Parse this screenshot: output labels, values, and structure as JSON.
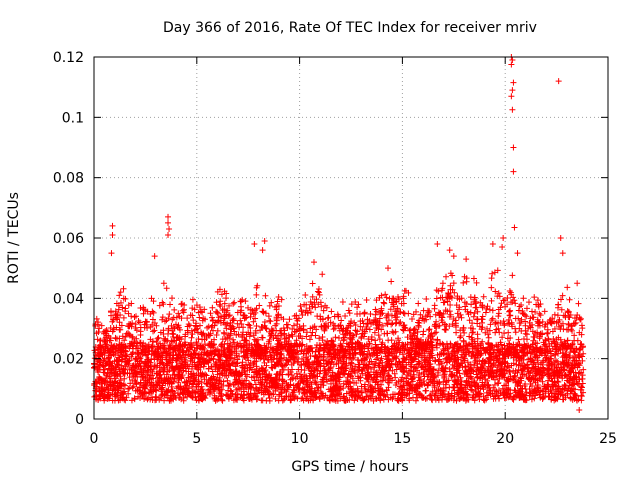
{
  "chart_data": {
    "type": "scatter",
    "title": "Day 366 of 2016, Rate Of TEC Index for receiver mriv",
    "xlabel": "GPS time / hours",
    "ylabel": "ROTI / TECUs",
    "xlim": [
      0,
      25
    ],
    "ylim": [
      0,
      0.12
    ],
    "xticks": [
      0,
      5,
      10,
      15,
      20,
      25
    ],
    "xtick_labels": [
      "0",
      "5",
      "10",
      "15",
      "20",
      "25"
    ],
    "yticks": [
      0,
      0.02,
      0.04,
      0.06,
      0.08,
      0.1,
      0.12
    ],
    "ytick_labels": [
      "0",
      "0.02",
      "0.04",
      "0.06",
      "0.08",
      "0.1",
      "0.12"
    ],
    "grid": true,
    "marker": "+",
    "color": "#ff0000",
    "data_range_x": [
      0,
      23.8
    ],
    "typical_band": [
      0.006,
      0.025
    ],
    "envelope": [
      {
        "x": 0.0,
        "y": 0.034
      },
      {
        "x": 0.5,
        "y": 0.033
      },
      {
        "x": 1.0,
        "y": 0.041
      },
      {
        "x": 1.5,
        "y": 0.048
      },
      {
        "x": 2.0,
        "y": 0.037
      },
      {
        "x": 2.5,
        "y": 0.04
      },
      {
        "x": 3.0,
        "y": 0.043
      },
      {
        "x": 3.5,
        "y": 0.046
      },
      {
        "x": 4.0,
        "y": 0.04
      },
      {
        "x": 4.5,
        "y": 0.038
      },
      {
        "x": 5.0,
        "y": 0.045
      },
      {
        "x": 5.5,
        "y": 0.035
      },
      {
        "x": 6.0,
        "y": 0.043
      },
      {
        "x": 6.5,
        "y": 0.046
      },
      {
        "x": 7.0,
        "y": 0.042
      },
      {
        "x": 7.5,
        "y": 0.038
      },
      {
        "x": 8.0,
        "y": 0.045
      },
      {
        "x": 8.5,
        "y": 0.04
      },
      {
        "x": 9.0,
        "y": 0.041
      },
      {
        "x": 9.5,
        "y": 0.037
      },
      {
        "x": 10.0,
        "y": 0.04
      },
      {
        "x": 10.5,
        "y": 0.048
      },
      {
        "x": 11.0,
        "y": 0.045
      },
      {
        "x": 11.5,
        "y": 0.041
      },
      {
        "x": 12.0,
        "y": 0.038
      },
      {
        "x": 12.5,
        "y": 0.042
      },
      {
        "x": 13.0,
        "y": 0.039
      },
      {
        "x": 13.5,
        "y": 0.04
      },
      {
        "x": 14.0,
        "y": 0.043
      },
      {
        "x": 14.5,
        "y": 0.047
      },
      {
        "x": 15.0,
        "y": 0.046
      },
      {
        "x": 15.5,
        "y": 0.04
      },
      {
        "x": 16.0,
        "y": 0.04
      },
      {
        "x": 16.5,
        "y": 0.042
      },
      {
        "x": 17.0,
        "y": 0.055
      },
      {
        "x": 17.5,
        "y": 0.05
      },
      {
        "x": 18.0,
        "y": 0.048
      },
      {
        "x": 18.5,
        "y": 0.047
      },
      {
        "x": 19.0,
        "y": 0.044
      },
      {
        "x": 19.5,
        "y": 0.051
      },
      {
        "x": 20.0,
        "y": 0.047
      },
      {
        "x": 20.5,
        "y": 0.048
      },
      {
        "x": 21.0,
        "y": 0.04
      },
      {
        "x": 21.5,
        "y": 0.041
      },
      {
        "x": 22.0,
        "y": 0.036
      },
      {
        "x": 22.5,
        "y": 0.04
      },
      {
        "x": 23.0,
        "y": 0.044
      },
      {
        "x": 23.5,
        "y": 0.043
      },
      {
        "x": 23.8,
        "y": 0.036
      }
    ],
    "outliers": [
      {
        "x": 0.9,
        "y": 0.064
      },
      {
        "x": 0.9,
        "y": 0.061
      },
      {
        "x": 0.85,
        "y": 0.055
      },
      {
        "x": 2.95,
        "y": 0.054
      },
      {
        "x": 3.6,
        "y": 0.067
      },
      {
        "x": 3.6,
        "y": 0.065
      },
      {
        "x": 3.65,
        "y": 0.063
      },
      {
        "x": 3.6,
        "y": 0.061
      },
      {
        "x": 7.8,
        "y": 0.058
      },
      {
        "x": 8.3,
        "y": 0.059
      },
      {
        "x": 8.2,
        "y": 0.056
      },
      {
        "x": 10.7,
        "y": 0.052
      },
      {
        "x": 11.1,
        "y": 0.048
      },
      {
        "x": 14.3,
        "y": 0.05
      },
      {
        "x": 16.7,
        "y": 0.058
      },
      {
        "x": 17.3,
        "y": 0.056
      },
      {
        "x": 17.5,
        "y": 0.054
      },
      {
        "x": 18.1,
        "y": 0.053
      },
      {
        "x": 19.4,
        "y": 0.058
      },
      {
        "x": 19.9,
        "y": 0.06
      },
      {
        "x": 19.85,
        "y": 0.057
      },
      {
        "x": 20.6,
        "y": 0.055
      },
      {
        "x": 20.3,
        "y": 0.12
      },
      {
        "x": 20.35,
        "y": 0.119
      },
      {
        "x": 20.3,
        "y": 0.1175
      },
      {
        "x": 20.4,
        "y": 0.1115
      },
      {
        "x": 20.35,
        "y": 0.109
      },
      {
        "x": 20.3,
        "y": 0.107
      },
      {
        "x": 20.35,
        "y": 0.1025
      },
      {
        "x": 20.4,
        "y": 0.09
      },
      {
        "x": 20.4,
        "y": 0.082
      },
      {
        "x": 20.45,
        "y": 0.0635
      },
      {
        "x": 22.6,
        "y": 0.112
      },
      {
        "x": 22.7,
        "y": 0.06
      },
      {
        "x": 22.8,
        "y": 0.055
      },
      {
        "x": 23.5,
        "y": 0.045
      },
      {
        "x": 23.6,
        "y": 0.003
      }
    ]
  }
}
